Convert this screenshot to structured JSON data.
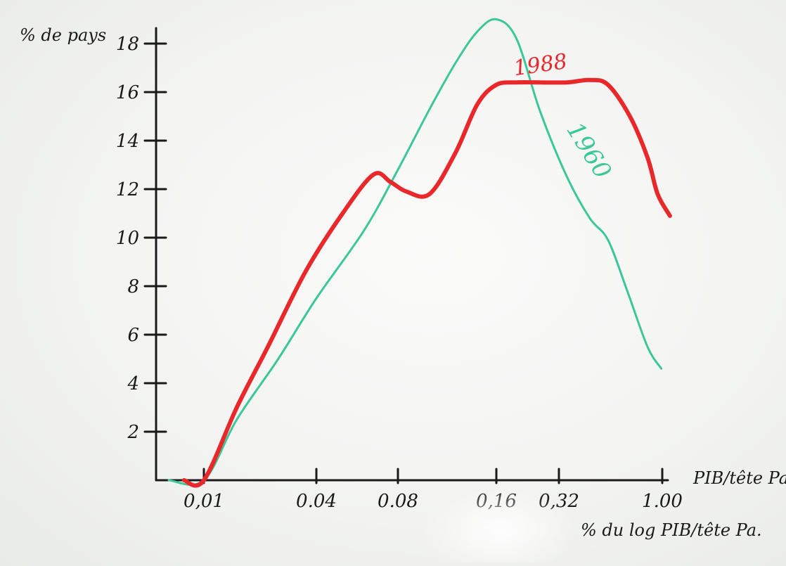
{
  "colors": {
    "background": "#f3f4f2",
    "ink": "#1a1a1a",
    "series_1988": "#e8282a",
    "series_1960": "#3cc79a"
  },
  "chart_data": {
    "type": "line",
    "title": "",
    "ylabel": "% de pays",
    "xlabel_right": "PIB/tête Pa",
    "xlabel_bottom": "% du log PIB/tête Pa.",
    "x_scale": "log",
    "y_ticks": [
      {
        "value": 2,
        "label": "2"
      },
      {
        "value": 4,
        "label": "4"
      },
      {
        "value": 6,
        "label": "6"
      },
      {
        "value": 8,
        "label": "8"
      },
      {
        "value": 10,
        "label": "10"
      },
      {
        "value": 12,
        "label": "12"
      },
      {
        "value": 14,
        "label": "14"
      },
      {
        "value": 16,
        "label": "16"
      },
      {
        "value": 18,
        "label": "18"
      }
    ],
    "x_ticks": [
      {
        "value": 0.01,
        "label": "0,01"
      },
      {
        "value": 0.04,
        "label": "0.04"
      },
      {
        "value": 0.08,
        "label": "0.08"
      },
      {
        "value": 0.16,
        "label": "0,16"
      },
      {
        "value": 0.32,
        "label": "0,32"
      },
      {
        "value": 1.0,
        "label": "1.00"
      }
    ],
    "ylim": [
      0,
      19
    ],
    "series": [
      {
        "name": "1988",
        "color": "#e8282a",
        "points": [
          [
            0.0085,
            0
          ],
          [
            0.01,
            0
          ],
          [
            0.015,
            3.0
          ],
          [
            0.022,
            5.5
          ],
          [
            0.035,
            8.6
          ],
          [
            0.05,
            11.0
          ],
          [
            0.065,
            12.6
          ],
          [
            0.075,
            12.3
          ],
          [
            0.085,
            11.9
          ],
          [
            0.1,
            11.8
          ],
          [
            0.12,
            13.5
          ],
          [
            0.14,
            15.5
          ],
          [
            0.16,
            16.3
          ],
          [
            0.2,
            16.4
          ],
          [
            0.26,
            16.4
          ],
          [
            0.35,
            16.4
          ],
          [
            0.45,
            16.5
          ],
          [
            0.55,
            16.3
          ],
          [
            0.7,
            15.0
          ],
          [
            0.85,
            13.3
          ],
          [
            0.95,
            11.8
          ],
          [
            1.03,
            10.9
          ]
        ]
      },
      {
        "name": "1960",
        "color": "#3cc79a",
        "points": [
          [
            0.0075,
            0
          ],
          [
            0.01,
            0
          ],
          [
            0.015,
            2.5
          ],
          [
            0.025,
            5.0
          ],
          [
            0.04,
            7.5
          ],
          [
            0.06,
            10.3
          ],
          [
            0.08,
            12.8
          ],
          [
            0.1,
            15.3
          ],
          [
            0.12,
            17.2
          ],
          [
            0.14,
            18.5
          ],
          [
            0.16,
            19.0
          ],
          [
            0.2,
            18.2
          ],
          [
            0.26,
            15.2
          ],
          [
            0.35,
            12.5
          ],
          [
            0.45,
            10.8
          ],
          [
            0.55,
            9.9
          ],
          [
            0.68,
            7.8
          ],
          [
            0.85,
            5.5
          ],
          [
            0.99,
            4.6
          ]
        ]
      }
    ],
    "annotations": [
      {
        "series": "1988",
        "text": "1988"
      },
      {
        "series": "1960",
        "text": "1960"
      }
    ]
  }
}
